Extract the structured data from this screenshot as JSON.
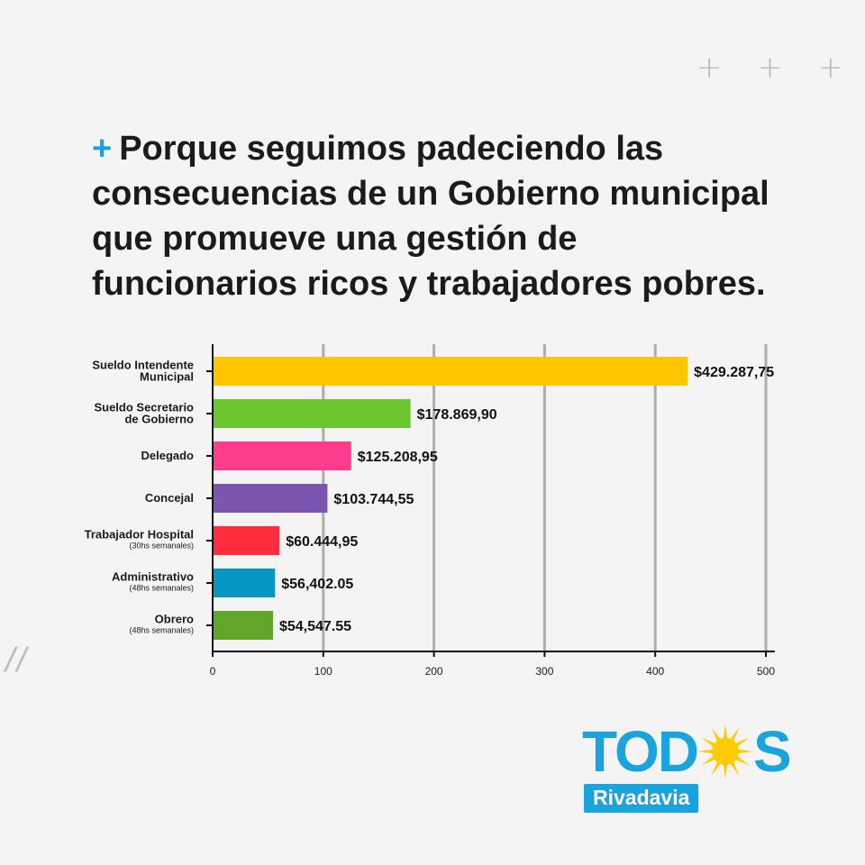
{
  "headline": {
    "bullet": "+",
    "text": "Porque seguimos padeciendo las consecuencias de un Gobierno municipal que promueve una gestión de funcionarios ricos y trabajadores pobres."
  },
  "decor": {
    "plus_marks": "+ + +",
    "slashes": "//"
  },
  "chart_data": {
    "type": "bar",
    "orientation": "horizontal",
    "categories": [
      {
        "label": [
          "Sueldo Intendente",
          "Municipal"
        ],
        "sublabel": ""
      },
      {
        "label": [
          "Sueldo Secretario",
          "de Gobierno"
        ],
        "sublabel": ""
      },
      {
        "label": [
          "Delegado"
        ],
        "sublabel": ""
      },
      {
        "label": [
          "Concejal"
        ],
        "sublabel": ""
      },
      {
        "label": [
          "Trabajador Hospital"
        ],
        "sublabel": "(30hs semanales)"
      },
      {
        "label": [
          "Administrativo"
        ],
        "sublabel": "(48hs semanales)"
      },
      {
        "label": [
          "Obrero"
        ],
        "sublabel": "(48hs semanales)"
      }
    ],
    "values": [
      429.28775,
      178.8699,
      125.20895,
      103.74455,
      60.44495,
      56.40205,
      54.54755
    ],
    "value_labels": [
      "$429.287,75",
      "$178.869,90",
      "$125.208,95",
      "$103.744,55",
      "$60.444,95",
      "$56,402.05",
      "$54,547.55"
    ],
    "colors": [
      "#ffc600",
      "#6cc72e",
      "#ff3d8d",
      "#7b55b0",
      "#ff2c3e",
      "#0596c4",
      "#62a52b"
    ],
    "xlim": [
      0,
      500
    ],
    "xticks": [
      0,
      100,
      200,
      300,
      400,
      500
    ],
    "grid": true,
    "title": "",
    "xlabel": "",
    "ylabel": ""
  },
  "logo": {
    "word_left": "TOD",
    "word_right": "S",
    "sub": "Rivadavia",
    "brand_color": "#1aa3dd",
    "sun_color": "#ffcb05",
    "icon": "sun-icon"
  }
}
